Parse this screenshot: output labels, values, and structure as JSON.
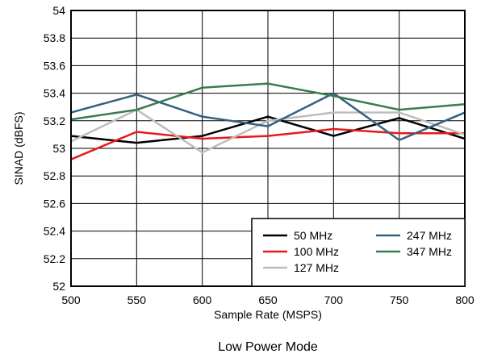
{
  "chart_data": {
    "type": "line",
    "title": "",
    "caption": "Low Power Mode",
    "xlabel": "Sample Rate (MSPS)",
    "ylabel": "SINAD (dBFS)",
    "xlim": [
      500,
      800
    ],
    "ylim": [
      52,
      54
    ],
    "x_ticks": [
      "500",
      "550",
      "600",
      "650",
      "700",
      "750",
      "800"
    ],
    "y_ticks": [
      "52",
      "52.2",
      "52.4",
      "52.6",
      "52.8",
      "53",
      "53.2",
      "53.4",
      "53.6",
      "53.8",
      "54"
    ],
    "grid": true,
    "legend_position": "bottom-right",
    "x": [
      500,
      550,
      600,
      650,
      700,
      750,
      800
    ],
    "series": [
      {
        "name": "50 MHz",
        "color": "#000000",
        "values": [
          53.09,
          53.04,
          53.09,
          53.23,
          53.09,
          53.22,
          53.07
        ]
      },
      {
        "name": "100 MHz",
        "color": "#e8191c",
        "values": [
          52.92,
          53.12,
          53.07,
          53.09,
          53.14,
          53.11,
          53.11
        ]
      },
      {
        "name": "127 MHz",
        "color": "#bdbdbd",
        "values": [
          53.05,
          53.28,
          52.97,
          53.2,
          53.26,
          53.26,
          53.1
        ]
      },
      {
        "name": "247 MHz",
        "color": "#35607f",
        "values": [
          53.26,
          53.39,
          53.23,
          53.16,
          53.4,
          53.06,
          53.26
        ]
      },
      {
        "name": "347 MHz",
        "color": "#3c7a52",
        "values": [
          53.21,
          53.28,
          53.44,
          53.47,
          53.38,
          53.28,
          53.32
        ]
      }
    ]
  }
}
